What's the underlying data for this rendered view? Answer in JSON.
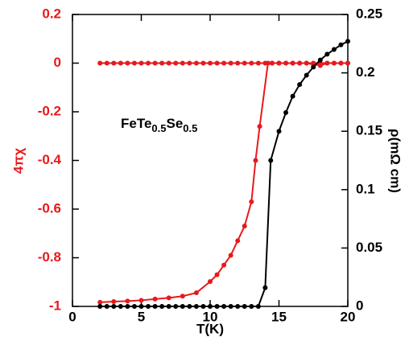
{
  "chart_data": {
    "type": "line",
    "x_label": "T(K)",
    "y_label": "4πχ",
    "y2_label": "ρ(mΩ cm)",
    "annotation": [
      "FeTe",
      "0.5",
      "Se",
      "0.5"
    ],
    "xlim": [
      0,
      20
    ],
    "xticks": [
      0,
      5,
      10,
      15,
      20
    ],
    "ylim": [
      -1,
      0.2
    ],
    "yticks": [
      0.2,
      0,
      -0.2,
      -0.4,
      -0.6,
      -0.8,
      -1
    ],
    "y2lim": [
      0,
      0.25
    ],
    "y2ticks": [
      0,
      0.05,
      0.1,
      0.15,
      0.2,
      0.25
    ],
    "y_color": "#e8191c",
    "y2_color": "#000000",
    "series": [
      {
        "color": "#e8191c",
        "axis": "y",
        "x": [
          2,
          2.5,
          3,
          3.5,
          4,
          4.5,
          5,
          5.5,
          6,
          6.5,
          7,
          7.5,
          8,
          8.5,
          9,
          9.5,
          10,
          10.5,
          11,
          11.5,
          12,
          12.5,
          13,
          13.5,
          14,
          14.5,
          15,
          15.5,
          16,
          16.5,
          17,
          17.5,
          18,
          18.5,
          19,
          19.5,
          20
        ],
        "values": [
          0,
          0,
          0,
          0,
          0,
          0,
          0,
          0,
          0,
          0,
          0,
          0,
          0,
          0,
          0,
          0,
          0,
          0,
          0,
          0,
          0,
          0,
          0,
          0,
          0,
          0,
          0,
          0,
          0,
          0,
          0,
          0,
          0,
          0,
          0,
          0,
          0
        ]
      },
      {
        "color": "#e8191c",
        "axis": "y",
        "x": [
          2,
          3,
          4,
          5,
          6,
          7,
          8,
          9,
          10,
          10.5,
          11,
          11.5,
          12,
          12.5,
          13,
          13.3,
          13.6,
          14.2,
          14.5,
          15,
          15.5,
          16,
          16.5,
          17,
          17.5,
          18,
          18.5,
          19,
          19.5,
          20
        ],
        "values": [
          -0.983,
          -0.98,
          -0.978,
          -0.975,
          -0.97,
          -0.965,
          -0.958,
          -0.944,
          -0.898,
          -0.87,
          -0.83,
          -0.79,
          -0.73,
          -0.67,
          -0.57,
          -0.4,
          -0.26,
          0,
          0,
          0,
          0,
          0,
          0,
          0,
          -0.005,
          -0.01,
          0,
          0,
          0,
          0
        ]
      },
      {
        "color": "#000000",
        "axis": "y2",
        "x": [
          2,
          2.5,
          3,
          3.5,
          4,
          4.5,
          5,
          5.5,
          6,
          6.5,
          7,
          7.5,
          8,
          8.5,
          9,
          9.5,
          10,
          10.5,
          11,
          11.5,
          12,
          12.5,
          13,
          13.5,
          14,
          14.4,
          15,
          15.5,
          16,
          16.5,
          17,
          17.5,
          18,
          18.5,
          19,
          19.5,
          20
        ],
        "values": [
          0,
          0,
          0,
          0,
          0,
          0,
          0,
          0,
          0,
          0,
          0,
          0,
          0,
          0,
          0,
          0,
          0,
          0,
          0,
          0,
          0,
          0,
          0,
          0,
          0.016,
          0.125,
          0.15,
          0.166,
          0.18,
          0.19,
          0.198,
          0.205,
          0.211,
          0.216,
          0.22,
          0.224,
          0.227
        ]
      }
    ]
  }
}
